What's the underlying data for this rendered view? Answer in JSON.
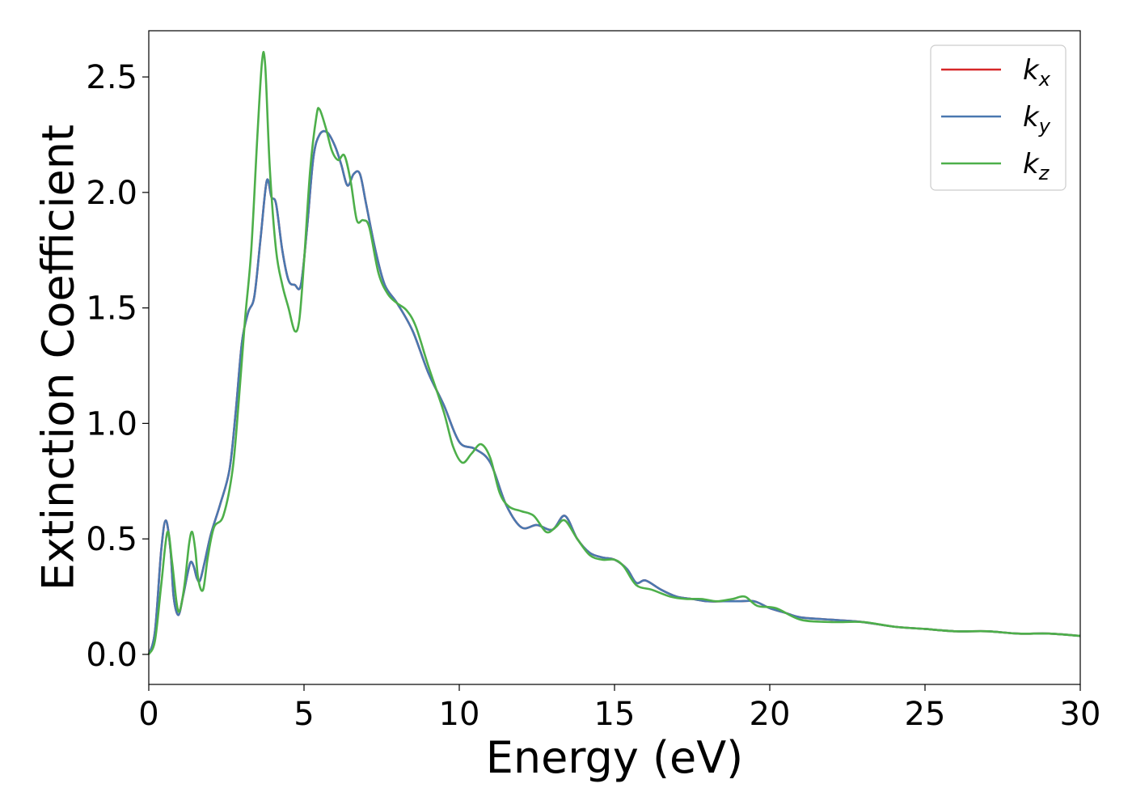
{
  "chart_data": {
    "type": "line",
    "xlabel": "Energy (eV)",
    "ylabel": "Extinction Coefficient",
    "xlim": [
      0,
      30
    ],
    "ylim": [
      -0.13,
      2.7
    ],
    "xticks": [
      0,
      5,
      10,
      15,
      20,
      25,
      30
    ],
    "xtick_labels": [
      "0",
      "5",
      "10",
      "15",
      "20",
      "25",
      "30"
    ],
    "yticks": [
      0.0,
      0.5,
      1.0,
      1.5,
      2.0,
      2.5
    ],
    "ytick_labels": [
      "0.0",
      "0.5",
      "1.0",
      "1.5",
      "2.0",
      "2.5"
    ],
    "grid": false,
    "legend_position": "top-right",
    "series": [
      {
        "name_main": "k",
        "name_sub": "x",
        "color": "#d62728",
        "points": [
          [
            0,
            0.0
          ],
          [
            0.2,
            0.1
          ],
          [
            0.4,
            0.45
          ],
          [
            0.55,
            0.58
          ],
          [
            0.7,
            0.45
          ],
          [
            0.8,
            0.25
          ],
          [
            0.95,
            0.17
          ],
          [
            1.1,
            0.25
          ],
          [
            1.25,
            0.35
          ],
          [
            1.35,
            0.4
          ],
          [
            1.45,
            0.38
          ],
          [
            1.55,
            0.33
          ],
          [
            1.65,
            0.32
          ],
          [
            1.8,
            0.4
          ],
          [
            2.0,
            0.52
          ],
          [
            2.3,
            0.65
          ],
          [
            2.6,
            0.8
          ],
          [
            2.8,
            1.05
          ],
          [
            3.0,
            1.35
          ],
          [
            3.2,
            1.48
          ],
          [
            3.4,
            1.55
          ],
          [
            3.6,
            1.8
          ],
          [
            3.8,
            2.05
          ],
          [
            3.95,
            1.98
          ],
          [
            4.1,
            1.95
          ],
          [
            4.3,
            1.75
          ],
          [
            4.5,
            1.62
          ],
          [
            4.7,
            1.6
          ],
          [
            4.9,
            1.6
          ],
          [
            5.1,
            1.85
          ],
          [
            5.3,
            2.15
          ],
          [
            5.5,
            2.25
          ],
          [
            5.75,
            2.26
          ],
          [
            6.0,
            2.2
          ],
          [
            6.2,
            2.12
          ],
          [
            6.4,
            2.03
          ],
          [
            6.6,
            2.08
          ],
          [
            6.8,
            2.08
          ],
          [
            7.0,
            1.95
          ],
          [
            7.3,
            1.75
          ],
          [
            7.6,
            1.6
          ],
          [
            8.0,
            1.52
          ],
          [
            8.5,
            1.4
          ],
          [
            9.0,
            1.22
          ],
          [
            9.5,
            1.08
          ],
          [
            10.0,
            0.92
          ],
          [
            10.5,
            0.89
          ],
          [
            11.0,
            0.83
          ],
          [
            11.5,
            0.65
          ],
          [
            12.0,
            0.55
          ],
          [
            12.5,
            0.56
          ],
          [
            13.0,
            0.54
          ],
          [
            13.4,
            0.6
          ],
          [
            13.8,
            0.5
          ],
          [
            14.2,
            0.44
          ],
          [
            14.6,
            0.42
          ],
          [
            15.0,
            0.41
          ],
          [
            15.4,
            0.37
          ],
          [
            15.7,
            0.31
          ],
          [
            16.0,
            0.32
          ],
          [
            16.5,
            0.28
          ],
          [
            17.0,
            0.25
          ],
          [
            17.5,
            0.24
          ],
          [
            18.0,
            0.23
          ],
          [
            18.5,
            0.23
          ],
          [
            19.0,
            0.23
          ],
          [
            19.5,
            0.23
          ],
          [
            20.0,
            0.2
          ],
          [
            20.5,
            0.18
          ],
          [
            21.0,
            0.16
          ],
          [
            22.0,
            0.15
          ],
          [
            23.0,
            0.14
          ],
          [
            24.0,
            0.12
          ],
          [
            25.0,
            0.11
          ],
          [
            26.0,
            0.1
          ],
          [
            27.0,
            0.1
          ],
          [
            28.0,
            0.09
          ],
          [
            29.0,
            0.09
          ],
          [
            30.0,
            0.08
          ]
        ]
      },
      {
        "name_main": "k",
        "name_sub": "y",
        "color": "#4a78b0",
        "points": [
          [
            0,
            0.0
          ],
          [
            0.2,
            0.1
          ],
          [
            0.4,
            0.45
          ],
          [
            0.55,
            0.58
          ],
          [
            0.7,
            0.45
          ],
          [
            0.8,
            0.25
          ],
          [
            0.95,
            0.17
          ],
          [
            1.1,
            0.25
          ],
          [
            1.25,
            0.35
          ],
          [
            1.35,
            0.4
          ],
          [
            1.45,
            0.38
          ],
          [
            1.55,
            0.33
          ],
          [
            1.65,
            0.32
          ],
          [
            1.8,
            0.4
          ],
          [
            2.0,
            0.52
          ],
          [
            2.3,
            0.65
          ],
          [
            2.6,
            0.8
          ],
          [
            2.8,
            1.05
          ],
          [
            3.0,
            1.35
          ],
          [
            3.2,
            1.48
          ],
          [
            3.4,
            1.55
          ],
          [
            3.6,
            1.8
          ],
          [
            3.8,
            2.05
          ],
          [
            3.95,
            1.98
          ],
          [
            4.1,
            1.95
          ],
          [
            4.3,
            1.75
          ],
          [
            4.5,
            1.62
          ],
          [
            4.7,
            1.6
          ],
          [
            4.9,
            1.6
          ],
          [
            5.1,
            1.85
          ],
          [
            5.3,
            2.15
          ],
          [
            5.5,
            2.25
          ],
          [
            5.75,
            2.26
          ],
          [
            6.0,
            2.2
          ],
          [
            6.2,
            2.12
          ],
          [
            6.4,
            2.03
          ],
          [
            6.6,
            2.08
          ],
          [
            6.8,
            2.08
          ],
          [
            7.0,
            1.95
          ],
          [
            7.3,
            1.75
          ],
          [
            7.6,
            1.6
          ],
          [
            8.0,
            1.52
          ],
          [
            8.5,
            1.4
          ],
          [
            9.0,
            1.22
          ],
          [
            9.5,
            1.08
          ],
          [
            10.0,
            0.92
          ],
          [
            10.5,
            0.89
          ],
          [
            11.0,
            0.83
          ],
          [
            11.5,
            0.65
          ],
          [
            12.0,
            0.55
          ],
          [
            12.5,
            0.56
          ],
          [
            13.0,
            0.54
          ],
          [
            13.4,
            0.6
          ],
          [
            13.8,
            0.5
          ],
          [
            14.2,
            0.44
          ],
          [
            14.6,
            0.42
          ],
          [
            15.0,
            0.41
          ],
          [
            15.4,
            0.37
          ],
          [
            15.7,
            0.31
          ],
          [
            16.0,
            0.32
          ],
          [
            16.5,
            0.28
          ],
          [
            17.0,
            0.25
          ],
          [
            17.5,
            0.24
          ],
          [
            18.0,
            0.23
          ],
          [
            18.5,
            0.23
          ],
          [
            19.0,
            0.23
          ],
          [
            19.5,
            0.23
          ],
          [
            20.0,
            0.2
          ],
          [
            20.5,
            0.18
          ],
          [
            21.0,
            0.16
          ],
          [
            22.0,
            0.15
          ],
          [
            23.0,
            0.14
          ],
          [
            24.0,
            0.12
          ],
          [
            25.0,
            0.11
          ],
          [
            26.0,
            0.1
          ],
          [
            27.0,
            0.1
          ],
          [
            28.0,
            0.09
          ],
          [
            29.0,
            0.09
          ],
          [
            30.0,
            0.08
          ]
        ]
      },
      {
        "name_main": "k",
        "name_sub": "z",
        "color": "#4daf4a",
        "points": [
          [
            0,
            0.0
          ],
          [
            0.2,
            0.06
          ],
          [
            0.4,
            0.3
          ],
          [
            0.6,
            0.53
          ],
          [
            0.75,
            0.4
          ],
          [
            0.9,
            0.22
          ],
          [
            1.0,
            0.19
          ],
          [
            1.15,
            0.3
          ],
          [
            1.3,
            0.48
          ],
          [
            1.4,
            0.53
          ],
          [
            1.5,
            0.45
          ],
          [
            1.6,
            0.32
          ],
          [
            1.75,
            0.28
          ],
          [
            1.9,
            0.42
          ],
          [
            2.1,
            0.55
          ],
          [
            2.4,
            0.6
          ],
          [
            2.7,
            0.8
          ],
          [
            2.9,
            1.1
          ],
          [
            3.1,
            1.45
          ],
          [
            3.3,
            1.75
          ],
          [
            3.5,
            2.25
          ],
          [
            3.65,
            2.57
          ],
          [
            3.75,
            2.55
          ],
          [
            3.9,
            2.1
          ],
          [
            4.1,
            1.75
          ],
          [
            4.3,
            1.6
          ],
          [
            4.5,
            1.5
          ],
          [
            4.7,
            1.4
          ],
          [
            4.85,
            1.45
          ],
          [
            5.0,
            1.7
          ],
          [
            5.2,
            2.1
          ],
          [
            5.4,
            2.33
          ],
          [
            5.5,
            2.36
          ],
          [
            5.7,
            2.28
          ],
          [
            5.9,
            2.18
          ],
          [
            6.1,
            2.14
          ],
          [
            6.3,
            2.16
          ],
          [
            6.5,
            2.05
          ],
          [
            6.7,
            1.88
          ],
          [
            6.9,
            1.88
          ],
          [
            7.1,
            1.85
          ],
          [
            7.4,
            1.65
          ],
          [
            7.7,
            1.56
          ],
          [
            8.0,
            1.52
          ],
          [
            8.3,
            1.49
          ],
          [
            8.6,
            1.42
          ],
          [
            9.0,
            1.25
          ],
          [
            9.5,
            1.05
          ],
          [
            9.8,
            0.9
          ],
          [
            10.1,
            0.83
          ],
          [
            10.4,
            0.87
          ],
          [
            10.7,
            0.91
          ],
          [
            11.0,
            0.85
          ],
          [
            11.3,
            0.7
          ],
          [
            11.6,
            0.64
          ],
          [
            12.0,
            0.62
          ],
          [
            12.4,
            0.6
          ],
          [
            12.8,
            0.53
          ],
          [
            13.1,
            0.55
          ],
          [
            13.4,
            0.58
          ],
          [
            13.8,
            0.5
          ],
          [
            14.2,
            0.43
          ],
          [
            14.6,
            0.41
          ],
          [
            15.0,
            0.41
          ],
          [
            15.3,
            0.38
          ],
          [
            15.7,
            0.3
          ],
          [
            16.2,
            0.28
          ],
          [
            16.8,
            0.25
          ],
          [
            17.3,
            0.24
          ],
          [
            17.8,
            0.24
          ],
          [
            18.3,
            0.23
          ],
          [
            18.8,
            0.24
          ],
          [
            19.2,
            0.25
          ],
          [
            19.6,
            0.21
          ],
          [
            20.2,
            0.2
          ],
          [
            21.0,
            0.15
          ],
          [
            22.0,
            0.14
          ],
          [
            23.0,
            0.14
          ],
          [
            24.0,
            0.12
          ],
          [
            25.0,
            0.11
          ],
          [
            26.0,
            0.1
          ],
          [
            27.0,
            0.1
          ],
          [
            28.0,
            0.09
          ],
          [
            29.0,
            0.09
          ],
          [
            30.0,
            0.08
          ]
        ]
      }
    ]
  }
}
